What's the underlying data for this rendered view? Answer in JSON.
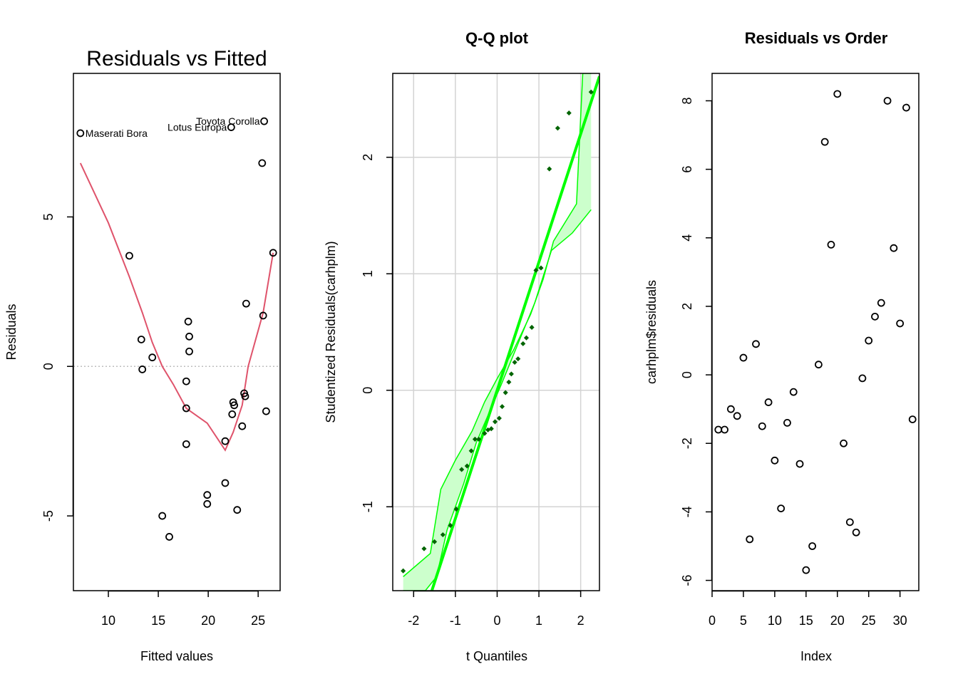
{
  "chart_data": [
    {
      "type": "scatter",
      "title": "Residuals vs Fitted",
      "xlabel": "Fitted values",
      "ylabel": "Residuals",
      "xlim": [
        6.5,
        27.2
      ],
      "ylim": [
        -7.5,
        9.8
      ],
      "xticks": [
        10,
        15,
        20,
        25
      ],
      "yticks": [
        -5,
        0,
        5
      ],
      "reference_line_y": 0,
      "points": [
        {
          "x": 7.2,
          "y": 7.8
        },
        {
          "x": 12.1,
          "y": 3.7
        },
        {
          "x": 13.3,
          "y": 0.9
        },
        {
          "x": 13.4,
          "y": -0.1
        },
        {
          "x": 14.4,
          "y": 0.3
        },
        {
          "x": 15.4,
          "y": -5.0
        },
        {
          "x": 16.1,
          "y": -5.7
        },
        {
          "x": 17.8,
          "y": -0.5
        },
        {
          "x": 17.8,
          "y": -1.4
        },
        {
          "x": 17.8,
          "y": -2.6
        },
        {
          "x": 18.0,
          "y": 1.5
        },
        {
          "x": 18.1,
          "y": 1.0
        },
        {
          "x": 18.1,
          "y": 0.5
        },
        {
          "x": 19.9,
          "y": -4.3
        },
        {
          "x": 19.9,
          "y": -4.6
        },
        {
          "x": 21.7,
          "y": -2.5
        },
        {
          "x": 21.7,
          "y": -3.9
        },
        {
          "x": 22.3,
          "y": 8.0
        },
        {
          "x": 22.4,
          "y": -1.6
        },
        {
          "x": 22.5,
          "y": -1.2
        },
        {
          "x": 22.6,
          "y": -1.3
        },
        {
          "x": 22.9,
          "y": -4.8
        },
        {
          "x": 23.4,
          "y": -2.0
        },
        {
          "x": 23.6,
          "y": -0.9
        },
        {
          "x": 23.7,
          "y": -1.0
        },
        {
          "x": 23.8,
          "y": 2.1
        },
        {
          "x": 25.4,
          "y": 6.8
        },
        {
          "x": 25.5,
          "y": 1.7
        },
        {
          "x": 25.6,
          "y": 8.2
        },
        {
          "x": 25.8,
          "y": -1.5
        },
        {
          "x": 26.5,
          "y": 3.8
        }
      ],
      "smooth_line": [
        [
          7.2,
          6.8
        ],
        [
          10,
          4.8
        ],
        [
          12.1,
          3.0
        ],
        [
          13.4,
          1.8
        ],
        [
          14.4,
          0.8
        ],
        [
          15.4,
          0.0
        ],
        [
          16.5,
          -0.6
        ],
        [
          17.8,
          -1.4
        ],
        [
          19.9,
          -1.9
        ],
        [
          21.7,
          -2.8
        ],
        [
          22.5,
          -2.2
        ],
        [
          23.4,
          -1.3
        ],
        [
          24.0,
          0.0
        ],
        [
          25.5,
          1.8
        ],
        [
          26.5,
          3.8
        ]
      ],
      "point_labels": [
        {
          "text": "Maserati Bora",
          "x": 7.2,
          "y": 7.8,
          "side": "right"
        },
        {
          "text": "Lotus Europa",
          "x": 22.3,
          "y": 8.0,
          "side": "left"
        },
        {
          "text": "Toyota Corolla",
          "x": 25.6,
          "y": 8.2,
          "side": "left"
        }
      ]
    },
    {
      "type": "scatter",
      "title": "Q-Q plot",
      "xlabel": "t Quantiles",
      "ylabel": "Studentized Residuals(carhplm)",
      "xlim": [
        -2.5,
        2.45
      ],
      "ylim": [
        -1.72,
        2.72
      ],
      "xticks": [
        -2,
        -1,
        0,
        1,
        2
      ],
      "yticks": [
        -1,
        0,
        1,
        2
      ],
      "grid": true,
      "reference_line": {
        "slope": 1.1,
        "intercept": 0.0
      },
      "envelope_lower": [
        [
          -2.25,
          -1.72
        ],
        [
          -1.72,
          -1.72
        ],
        [
          -1.45,
          -1.6
        ],
        [
          -1.2,
          -1.2
        ],
        [
          -0.8,
          -0.8
        ],
        [
          -0.5,
          -0.45
        ],
        [
          -0.2,
          -0.2
        ],
        [
          0.1,
          0.05
        ],
        [
          0.5,
          0.4
        ],
        [
          0.9,
          0.75
        ],
        [
          1.3,
          1.2
        ],
        [
          1.8,
          1.35
        ],
        [
          2.25,
          1.55
        ]
      ],
      "envelope_upper": [
        [
          -2.25,
          -1.6
        ],
        [
          -1.6,
          -1.4
        ],
        [
          -1.35,
          -0.85
        ],
        [
          -1.0,
          -0.6
        ],
        [
          -0.6,
          -0.35
        ],
        [
          -0.3,
          -0.1
        ],
        [
          0.0,
          0.1
        ],
        [
          0.4,
          0.35
        ],
        [
          0.8,
          0.65
        ],
        [
          1.1,
          0.95
        ],
        [
          1.35,
          1.28
        ],
        [
          1.9,
          1.6
        ],
        [
          2.05,
          2.72
        ],
        [
          2.25,
          2.72
        ]
      ],
      "points": [
        {
          "x": -2.25,
          "y": -1.55
        },
        {
          "x": -1.75,
          "y": -1.36
        },
        {
          "x": -1.5,
          "y": -1.3
        },
        {
          "x": -1.3,
          "y": -1.24
        },
        {
          "x": -1.12,
          "y": -1.16
        },
        {
          "x": -0.98,
          "y": -1.02
        },
        {
          "x": -0.85,
          "y": -0.68
        },
        {
          "x": -0.72,
          "y": -0.65
        },
        {
          "x": -0.62,
          "y": -0.52
        },
        {
          "x": -0.53,
          "y": -0.42
        },
        {
          "x": -0.44,
          "y": -0.42
        },
        {
          "x": -0.3,
          "y": -0.37
        },
        {
          "x": -0.22,
          "y": -0.34
        },
        {
          "x": -0.14,
          "y": -0.33
        },
        {
          "x": -0.05,
          "y": -0.27
        },
        {
          "x": 0.05,
          "y": -0.24
        },
        {
          "x": 0.12,
          "y": -0.14
        },
        {
          "x": 0.2,
          "y": -0.02
        },
        {
          "x": 0.28,
          "y": 0.07
        },
        {
          "x": 0.34,
          "y": 0.14
        },
        {
          "x": 0.42,
          "y": 0.24
        },
        {
          "x": 0.5,
          "y": 0.27
        },
        {
          "x": 0.62,
          "y": 0.4
        },
        {
          "x": 0.7,
          "y": 0.45
        },
        {
          "x": 0.83,
          "y": 0.54
        },
        {
          "x": 0.93,
          "y": 1.03
        },
        {
          "x": 1.05,
          "y": 1.05
        },
        {
          "x": 1.25,
          "y": 1.9
        },
        {
          "x": 1.45,
          "y": 2.25
        },
        {
          "x": 1.72,
          "y": 2.38
        },
        {
          "x": 2.25,
          "y": 2.56
        }
      ]
    },
    {
      "type": "scatter",
      "title": "Residuals vs Order",
      "xlabel": "Index",
      "ylabel": "carhplm$residuals",
      "xlim": [
        0,
        33
      ],
      "ylim": [
        -6.3,
        8.8
      ],
      "xticks": [
        0,
        5,
        10,
        15,
        20,
        25,
        30
      ],
      "yticks": [
        -6,
        -4,
        -2,
        0,
        2,
        4,
        6,
        8
      ],
      "points": [
        {
          "x": 1,
          "y": -1.6
        },
        {
          "x": 2,
          "y": -1.6
        },
        {
          "x": 3,
          "y": -1.0
        },
        {
          "x": 4,
          "y": -1.2
        },
        {
          "x": 5,
          "y": 0.5
        },
        {
          "x": 6,
          "y": -4.8
        },
        {
          "x": 7,
          "y": 0.9
        },
        {
          "x": 8,
          "y": -1.5
        },
        {
          "x": 9,
          "y": -0.8
        },
        {
          "x": 10,
          "y": -2.5
        },
        {
          "x": 11,
          "y": -3.9
        },
        {
          "x": 12,
          "y": -1.4
        },
        {
          "x": 13,
          "y": -0.5
        },
        {
          "x": 14,
          "y": -2.6
        },
        {
          "x": 15,
          "y": -5.7
        },
        {
          "x": 16,
          "y": -5.0
        },
        {
          "x": 17,
          "y": 0.3
        },
        {
          "x": 18,
          "y": 6.8
        },
        {
          "x": 19,
          "y": 3.8
        },
        {
          "x": 20,
          "y": 8.2
        },
        {
          "x": 21,
          "y": -2.0
        },
        {
          "x": 22,
          "y": -4.3
        },
        {
          "x": 23,
          "y": -4.6
        },
        {
          "x": 24,
          "y": -0.1
        },
        {
          "x": 25,
          "y": 1.0
        },
        {
          "x": 26,
          "y": 1.7
        },
        {
          "x": 27,
          "y": 2.1
        },
        {
          "x": 28,
          "y": 8.0
        },
        {
          "x": 29,
          "y": 3.7
        },
        {
          "x": 30,
          "y": 1.5
        },
        {
          "x": 31,
          "y": 7.8
        },
        {
          "x": 32,
          "y": -1.3
        }
      ]
    }
  ],
  "colors": {
    "smooth_line": "#DF536B",
    "qq_line": "#00FF00",
    "qq_band_fill": "#CCFFCC",
    "qq_points": "#006400",
    "grid": "#D3D3D3",
    "reference_dotted": "#BEBEBE"
  }
}
